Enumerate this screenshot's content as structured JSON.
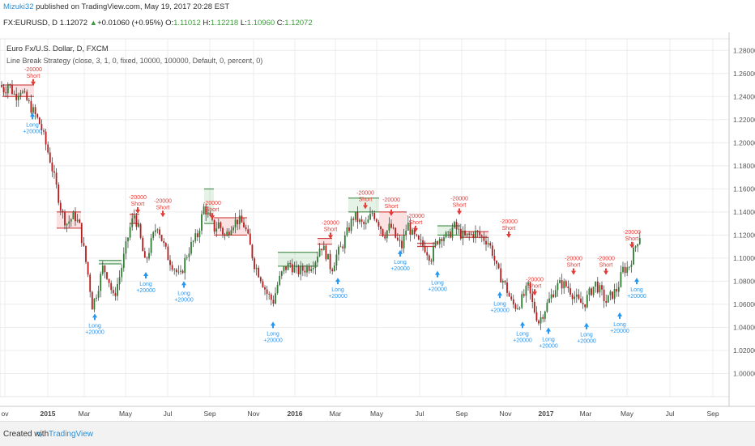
{
  "header": {
    "author": "Mizuki32",
    "published": "published on TradingView.com, May 19, 2017 20:28 EST",
    "symbol": "FX:EURUSD, D",
    "last": "1.12072",
    "change": "+0.01060 (+0.95%)",
    "o_label": "O:",
    "o_value": "1.11012",
    "h_label": "H:",
    "h_value": "1.12218",
    "l_label": "L:",
    "l_value": "1.10960",
    "c_label": "C:",
    "c_value": "1.12072"
  },
  "footer": {
    "created": "Created with",
    "brand": "TradingView",
    "logo_icon": "tradingview-logo-icon"
  },
  "colors": {
    "up_candle": "#2e7d32",
    "down_candle": "#b71c1c",
    "long": "#2196f3",
    "short": "#e53935",
    "grid": "#ececec"
  },
  "chart_data": {
    "type": "candlestick",
    "legend": [
      "Euro Fx/U.S. Dollar, D, FXCM",
      "Line Break Strategy (close, 3, 1, 0, fixed, 10000, 100000, Default, 0, percent, 0)"
    ],
    "ylim": [
      0.98,
      1.29
    ],
    "y_ticks": [
      "1.00000",
      "1.02000",
      "1.04000",
      "1.06000",
      "1.08000",
      "1.10000",
      "1.12000",
      "1.14000",
      "1.16000",
      "1.18000",
      "1.20000",
      "1.22000",
      "1.24000",
      "1.26000",
      "1.28000"
    ],
    "x_ticks": [
      "ov",
      "2015",
      "Mar",
      "May",
      "Jul",
      "Sep",
      "Nov",
      "2016",
      "Mar",
      "May",
      "Jul",
      "Sep",
      "Nov",
      "2017",
      "Mar",
      "May",
      "Jul",
      "Sep"
    ],
    "close_path": [
      [
        0,
        1.25
      ],
      [
        6,
        1.245
      ],
      [
        10,
        1.252
      ],
      [
        15,
        1.245
      ],
      [
        19,
        1.24
      ],
      [
        25,
        1.247
      ],
      [
        30,
        1.24
      ],
      [
        37,
        1.232
      ],
      [
        45,
        1.222
      ],
      [
        50,
        1.215
      ],
      [
        56,
        1.2
      ],
      [
        62,
        1.185
      ],
      [
        70,
        1.16
      ],
      [
        76,
        1.14
      ],
      [
        82,
        1.13
      ],
      [
        92,
        1.137
      ],
      [
        98,
        1.128
      ],
      [
        104,
        1.105
      ],
      [
        110,
        1.08
      ],
      [
        114,
        1.058
      ],
      [
        120,
        1.072
      ],
      [
        127,
        1.092
      ],
      [
        133,
        1.085
      ],
      [
        140,
        1.065
      ],
      [
        148,
        1.085
      ],
      [
        154,
        1.105
      ],
      [
        160,
        1.125
      ],
      [
        166,
        1.138
      ],
      [
        172,
        1.122
      ],
      [
        179,
        1.095
      ],
      [
        186,
        1.112
      ],
      [
        194,
        1.13
      ],
      [
        201,
        1.113
      ],
      [
        208,
        1.1
      ],
      [
        215,
        1.092
      ],
      [
        222,
        1.082
      ],
      [
        229,
        1.1
      ],
      [
        235,
        1.11
      ],
      [
        244,
        1.12
      ],
      [
        252,
        1.145
      ],
      [
        258,
        1.135
      ],
      [
        265,
        1.125
      ],
      [
        270,
        1.13
      ],
      [
        278,
        1.118
      ],
      [
        286,
        1.13
      ],
      [
        294,
        1.133
      ],
      [
        302,
        1.128
      ],
      [
        308,
        1.112
      ],
      [
        314,
        1.095
      ],
      [
        321,
        1.085
      ],
      [
        329,
        1.07
      ],
      [
        337,
        1.062
      ],
      [
        343,
        1.078
      ],
      [
        350,
        1.09
      ],
      [
        358,
        1.095
      ],
      [
        366,
        1.088
      ],
      [
        374,
        1.09
      ],
      [
        382,
        1.093
      ],
      [
        389,
        1.098
      ],
      [
        396,
        1.112
      ],
      [
        403,
        1.103
      ],
      [
        409,
        1.09
      ],
      [
        415,
        1.102
      ],
      [
        422,
        1.11
      ],
      [
        430,
        1.125
      ],
      [
        437,
        1.137
      ],
      [
        445,
        1.13
      ],
      [
        452,
        1.128
      ],
      [
        460,
        1.14
      ],
      [
        468,
        1.13
      ],
      [
        474,
        1.12
      ],
      [
        482,
        1.128
      ],
      [
        490,
        1.115
      ],
      [
        496,
        1.11
      ],
      [
        503,
        1.13
      ],
      [
        509,
        1.12
      ],
      [
        517,
        1.113
      ],
      [
        524,
        1.11
      ],
      [
        532,
        1.1
      ],
      [
        539,
        1.115
      ],
      [
        546,
        1.12
      ],
      [
        553,
        1.118
      ],
      [
        560,
        1.128
      ],
      [
        567,
        1.122
      ],
      [
        574,
        1.118
      ],
      [
        581,
        1.12
      ],
      [
        588,
        1.122
      ],
      [
        595,
        1.118
      ],
      [
        602,
        1.115
      ],
      [
        608,
        1.105
      ],
      [
        614,
        1.088
      ],
      [
        620,
        1.082
      ],
      [
        626,
        1.072
      ],
      [
        632,
        1.06
      ],
      [
        638,
        1.058
      ],
      [
        645,
        1.065
      ],
      [
        652,
        1.075
      ],
      [
        658,
        1.058
      ],
      [
        665,
        1.045
      ],
      [
        672,
        1.055
      ],
      [
        679,
        1.065
      ],
      [
        686,
        1.075
      ],
      [
        693,
        1.078
      ],
      [
        701,
        1.075
      ],
      [
        708,
        1.068
      ],
      [
        714,
        1.062
      ],
      [
        721,
        1.06
      ],
      [
        728,
        1.07
      ],
      [
        735,
        1.078
      ],
      [
        742,
        1.07
      ],
      [
        748,
        1.062
      ],
      [
        755,
        1.068
      ],
      [
        762,
        1.073
      ],
      [
        769,
        1.09
      ],
      [
        776,
        1.092
      ],
      [
        782,
        1.105
      ],
      [
        789,
        1.12
      ]
    ],
    "channel": [
      {
        "x0": 3,
        "x1": 42,
        "ylo": 1.24,
        "yhi": 1.25,
        "dir": "down"
      },
      {
        "x0": 70,
        "x1": 100,
        "ylo": 1.126,
        "yhi": 1.14,
        "dir": "down"
      },
      {
        "x0": 122,
        "x1": 150,
        "ylo": 1.095,
        "yhi": 1.098,
        "dir": "up"
      },
      {
        "x0": 160,
        "x1": 172,
        "ylo": 1.13,
        "yhi": 1.138,
        "dir": "down"
      },
      {
        "x0": 252,
        "x1": 264,
        "ylo": 1.13,
        "yhi": 1.16,
        "dir": "up"
      },
      {
        "x0": 264,
        "x1": 305,
        "ylo": 1.12,
        "yhi": 1.135,
        "dir": "down"
      },
      {
        "x0": 343,
        "x1": 392,
        "ylo": 1.093,
        "yhi": 1.105,
        "dir": "up"
      },
      {
        "x0": 392,
        "x1": 410,
        "ylo": 1.112,
        "yhi": 1.117,
        "dir": "down"
      },
      {
        "x0": 430,
        "x1": 468,
        "ylo": 1.14,
        "yhi": 1.152,
        "dir": "up"
      },
      {
        "x0": 468,
        "x1": 502,
        "ylo": 1.12,
        "yhi": 1.14,
        "dir": "down"
      },
      {
        "x0": 515,
        "x1": 538,
        "ylo": 1.11,
        "yhi": 1.113,
        "dir": "down"
      },
      {
        "x0": 540,
        "x1": 568,
        "ylo": 1.12,
        "yhi": 1.128,
        "dir": "up"
      },
      {
        "x0": 568,
        "x1": 603,
        "ylo": 1.118,
        "yhi": 1.123,
        "dir": "down"
      }
    ],
    "signals": [
      {
        "type": "short",
        "x": 41,
        "y": 1.253,
        "label": "Short",
        "qty": "-20000"
      },
      {
        "type": "long",
        "x": 40,
        "y": 1.226,
        "label": "Long",
        "qty": "+20000"
      },
      {
        "type": "long",
        "x": 117,
        "y": 1.052,
        "label": "Long",
        "qty": "+20000"
      },
      {
        "type": "short",
        "x": 170,
        "y": 1.142,
        "label": "Short",
        "qty": "-20000"
      },
      {
        "type": "long",
        "x": 180,
        "y": 1.088,
        "label": "Long",
        "qty": "+20000"
      },
      {
        "type": "short",
        "x": 201,
        "y": 1.139,
        "label": "Short",
        "qty": "-20000"
      },
      {
        "type": "long",
        "x": 227,
        "y": 1.08,
        "label": "Long",
        "qty": "+20000"
      },
      {
        "type": "short",
        "x": 262,
        "y": 1.137,
        "label": "Short",
        "qty": "-20000"
      },
      {
        "type": "long",
        "x": 337,
        "y": 1.045,
        "label": "Long",
        "qty": "+20000"
      },
      {
        "type": "short",
        "x": 408,
        "y": 1.12,
        "label": "Short",
        "qty": "-20000"
      },
      {
        "type": "long",
        "x": 417,
        "y": 1.083,
        "label": "Long",
        "qty": "+20000"
      },
      {
        "type": "short",
        "x": 451,
        "y": 1.146,
        "label": "Short",
        "qty": "-20000"
      },
      {
        "type": "short",
        "x": 483,
        "y": 1.14,
        "label": "Short",
        "qty": "-20000"
      },
      {
        "type": "long",
        "x": 494,
        "y": 1.107,
        "label": "Long",
        "qty": "+20000"
      },
      {
        "type": "short",
        "x": 513,
        "y": 1.126,
        "label": "Short",
        "qty": "-20000"
      },
      {
        "type": "long",
        "x": 540,
        "y": 1.089,
        "label": "Long",
        "qty": "+20000"
      },
      {
        "type": "short",
        "x": 567,
        "y": 1.141,
        "label": "Short",
        "qty": "-20000"
      },
      {
        "type": "short",
        "x": 628,
        "y": 1.121,
        "label": "Short",
        "qty": "-20000"
      },
      {
        "type": "long",
        "x": 617,
        "y": 1.071,
        "label": "Long",
        "qty": "+20000"
      },
      {
        "type": "long",
        "x": 645,
        "y": 1.045,
        "label": "Long",
        "qty": "+20000"
      },
      {
        "type": "short",
        "x": 660,
        "y": 1.071,
        "label": "Short",
        "qty": "-20000"
      },
      {
        "type": "long",
        "x": 677,
        "y": 1.04,
        "label": "Long",
        "qty": "+20000"
      },
      {
        "type": "short",
        "x": 708,
        "y": 1.089,
        "label": "Short",
        "qty": "-20000"
      },
      {
        "type": "long",
        "x": 724,
        "y": 1.044,
        "label": "Long",
        "qty": "+20000"
      },
      {
        "type": "short",
        "x": 748,
        "y": 1.089,
        "label": "Short",
        "qty": "-20000"
      },
      {
        "type": "long",
        "x": 765,
        "y": 1.053,
        "label": "Long",
        "qty": "+20000"
      },
      {
        "type": "short",
        "x": 780,
        "y": 1.112,
        "label": "Short",
        "qty": "-20000"
      },
      {
        "type": "long",
        "x": 786,
        "y": 1.083,
        "label": "Long",
        "qty": "+20000"
      }
    ]
  }
}
